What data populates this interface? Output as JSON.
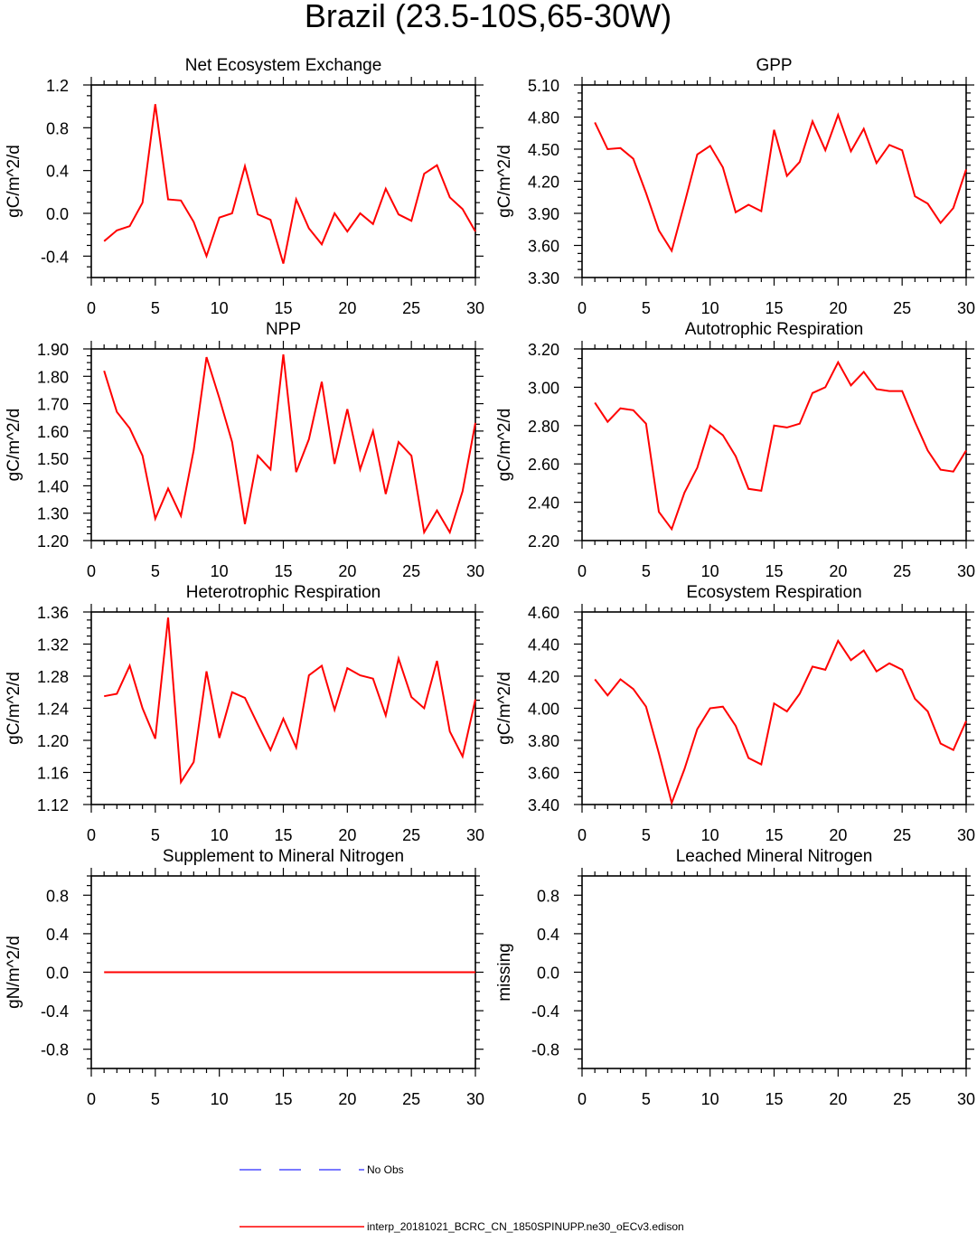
{
  "figure_title": "Brazil (23.5-10S,65-30W)",
  "colors": {
    "model": "#ff0000",
    "obs": "#4d4dff",
    "axis": "#000000"
  },
  "legend": {
    "obs_label": "No Obs",
    "model_label": "interp_20181021_BCRC_CN_1850SPINUPP.ne30_oECv3.edison"
  },
  "chart_data": [
    {
      "id": "nee",
      "type": "line",
      "title": "Net Ecosystem Exchange",
      "ylabel": "gC/m^2/d",
      "xlim": [
        0,
        30
      ],
      "ylim": [
        -0.6,
        1.2
      ],
      "xticks": [
        0,
        5,
        10,
        15,
        20,
        25,
        30
      ],
      "xtick_labels": [
        "0",
        "5",
        "10",
        "15",
        "20",
        "25",
        "30"
      ],
      "yticks": [
        -0.4,
        0.0,
        0.4,
        0.8,
        1.2
      ],
      "ytick_labels": [
        "-0.4",
        "0.0",
        "0.4",
        "0.8",
        "1.2"
      ],
      "x": [
        1,
        2,
        3,
        4,
        5,
        6,
        7,
        8,
        9,
        10,
        11,
        12,
        13,
        14,
        15,
        16,
        17,
        18,
        19,
        20,
        21,
        22,
        23,
        24,
        25,
        26,
        27,
        28,
        29,
        30
      ],
      "series": [
        {
          "name": "interp_20181021_BCRC_CN_1850SPINUPP.ne30_oECv3.edison",
          "values": [
            -0.26,
            -0.16,
            -0.12,
            0.1,
            1.02,
            0.13,
            0.12,
            -0.08,
            -0.4,
            -0.04,
            0.0,
            0.44,
            -0.01,
            -0.06,
            -0.47,
            0.13,
            -0.14,
            -0.29,
            0.0,
            -0.17,
            0.0,
            -0.1,
            0.23,
            -0.01,
            -0.07,
            0.37,
            0.45,
            0.15,
            0.04,
            -0.17
          ]
        }
      ]
    },
    {
      "id": "gpp",
      "type": "line",
      "title": "GPP",
      "ylabel": "gC/m^2/d",
      "xlim": [
        0,
        30
      ],
      "ylim": [
        3.3,
        5.1
      ],
      "xticks": [
        0,
        5,
        10,
        15,
        20,
        25,
        30
      ],
      "xtick_labels": [
        "0",
        "5",
        "10",
        "15",
        "20",
        "25",
        "30"
      ],
      "yticks": [
        3.3,
        3.6,
        3.9,
        4.2,
        4.5,
        4.8,
        5.1
      ],
      "ytick_labels": [
        "3.30",
        "3.60",
        "3.90",
        "4.20",
        "4.50",
        "4.80",
        "5.10"
      ],
      "x": [
        1,
        2,
        3,
        4,
        5,
        6,
        7,
        8,
        9,
        10,
        11,
        12,
        13,
        14,
        15,
        16,
        17,
        18,
        19,
        20,
        21,
        22,
        23,
        24,
        25,
        26,
        27,
        28,
        29,
        30
      ],
      "series": [
        {
          "name": "interp_20181021_BCRC_CN_1850SPINUPP.ne30_oECv3.edison",
          "values": [
            4.75,
            4.5,
            4.51,
            4.41,
            4.09,
            3.74,
            3.55,
            3.99,
            4.45,
            4.53,
            4.33,
            3.91,
            3.98,
            3.92,
            4.68,
            4.25,
            4.38,
            4.76,
            4.49,
            4.82,
            4.48,
            4.69,
            4.37,
            4.54,
            4.49,
            4.06,
            3.99,
            3.81,
            3.95,
            4.31
          ]
        }
      ]
    },
    {
      "id": "npp",
      "type": "line",
      "title": "NPP",
      "ylabel": "gC/m^2/d",
      "xlim": [
        0,
        30
      ],
      "ylim": [
        1.2,
        1.9
      ],
      "xticks": [
        0,
        5,
        10,
        15,
        20,
        25,
        30
      ],
      "xtick_labels": [
        "0",
        "5",
        "10",
        "15",
        "20",
        "25",
        "30"
      ],
      "yticks": [
        1.2,
        1.3,
        1.4,
        1.5,
        1.6,
        1.7,
        1.8,
        1.9
      ],
      "ytick_labels": [
        "1.20",
        "1.30",
        "1.40",
        "1.50",
        "1.60",
        "1.70",
        "1.80",
        "1.90"
      ],
      "x": [
        1,
        2,
        3,
        4,
        5,
        6,
        7,
        8,
        9,
        10,
        11,
        12,
        13,
        14,
        15,
        16,
        17,
        18,
        19,
        20,
        21,
        22,
        23,
        24,
        25,
        26,
        27,
        28,
        29,
        30
      ],
      "series": [
        {
          "name": "interp_20181021_BCRC_CN_1850SPINUPP.ne30_oECv3.edison",
          "values": [
            1.82,
            1.67,
            1.61,
            1.51,
            1.28,
            1.39,
            1.29,
            1.53,
            1.87,
            1.72,
            1.56,
            1.26,
            1.51,
            1.46,
            1.88,
            1.45,
            1.57,
            1.78,
            1.48,
            1.68,
            1.46,
            1.6,
            1.37,
            1.56,
            1.51,
            1.23,
            1.31,
            1.23,
            1.38,
            1.63
          ]
        }
      ]
    },
    {
      "id": "ar",
      "type": "line",
      "title": "Autotrophic Respiration",
      "ylabel": "gC/m^2/d",
      "xlim": [
        0,
        30
      ],
      "ylim": [
        2.2,
        3.2
      ],
      "xticks": [
        0,
        5,
        10,
        15,
        20,
        25,
        30
      ],
      "xtick_labels": [
        "0",
        "5",
        "10",
        "15",
        "20",
        "25",
        "30"
      ],
      "yticks": [
        2.2,
        2.4,
        2.6,
        2.8,
        3.0,
        3.2
      ],
      "ytick_labels": [
        "2.20",
        "2.40",
        "2.60",
        "2.80",
        "3.00",
        "3.20"
      ],
      "x": [
        1,
        2,
        3,
        4,
        5,
        6,
        7,
        8,
        9,
        10,
        11,
        12,
        13,
        14,
        15,
        16,
        17,
        18,
        19,
        20,
        21,
        22,
        23,
        24,
        25,
        26,
        27,
        28,
        29,
        30
      ],
      "series": [
        {
          "name": "interp_20181021_BCRC_CN_1850SPINUPP.ne30_oECv3.edison",
          "values": [
            2.92,
            2.82,
            2.89,
            2.88,
            2.81,
            2.35,
            2.26,
            2.45,
            2.58,
            2.8,
            2.75,
            2.64,
            2.47,
            2.46,
            2.8,
            2.79,
            2.81,
            2.97,
            3.0,
            3.13,
            3.01,
            3.08,
            2.99,
            2.98,
            2.98,
            2.82,
            2.67,
            2.57,
            2.56,
            2.67
          ]
        }
      ]
    },
    {
      "id": "hr",
      "type": "line",
      "title": "Heterotrophic Respiration",
      "ylabel": "gC/m^2/d",
      "xlim": [
        0,
        30
      ],
      "ylim": [
        1.12,
        1.36
      ],
      "xticks": [
        0,
        5,
        10,
        15,
        20,
        25,
        30
      ],
      "xtick_labels": [
        "0",
        "5",
        "10",
        "15",
        "20",
        "25",
        "30"
      ],
      "yticks": [
        1.12,
        1.16,
        1.2,
        1.24,
        1.28,
        1.32,
        1.36
      ],
      "ytick_labels": [
        "1.12",
        "1.16",
        "1.20",
        "1.24",
        "1.28",
        "1.32",
        "1.36"
      ],
      "x": [
        1,
        2,
        3,
        4,
        5,
        6,
        7,
        8,
        9,
        10,
        11,
        12,
        13,
        14,
        15,
        16,
        17,
        18,
        19,
        20,
        21,
        22,
        23,
        24,
        25,
        26,
        27,
        28,
        29,
        30
      ],
      "series": [
        {
          "name": "interp_20181021_BCRC_CN_1850SPINUPP.ne30_oECv3.edison",
          "values": [
            1.255,
            1.258,
            1.293,
            1.24,
            1.202,
            1.353,
            1.148,
            1.173,
            1.286,
            1.203,
            1.26,
            1.253,
            1.22,
            1.188,
            1.227,
            1.191,
            1.281,
            1.293,
            1.238,
            1.29,
            1.281,
            1.277,
            1.231,
            1.302,
            1.254,
            1.24,
            1.299,
            1.211,
            1.18,
            1.251
          ]
        }
      ]
    },
    {
      "id": "er",
      "type": "line",
      "title": "Ecosystem Respiration",
      "ylabel": "gC/m^2/d",
      "xlim": [
        0,
        30
      ],
      "ylim": [
        3.4,
        4.6
      ],
      "xticks": [
        0,
        5,
        10,
        15,
        20,
        25,
        30
      ],
      "xtick_labels": [
        "0",
        "5",
        "10",
        "15",
        "20",
        "25",
        "30"
      ],
      "yticks": [
        3.4,
        3.6,
        3.8,
        4.0,
        4.2,
        4.4,
        4.6
      ],
      "ytick_labels": [
        "3.40",
        "3.60",
        "3.80",
        "4.00",
        "4.20",
        "4.40",
        "4.60"
      ],
      "x": [
        1,
        2,
        3,
        4,
        5,
        6,
        7,
        8,
        9,
        10,
        11,
        12,
        13,
        14,
        15,
        16,
        17,
        18,
        19,
        20,
        21,
        22,
        23,
        24,
        25,
        26,
        27,
        28,
        29,
        30
      ],
      "series": [
        {
          "name": "interp_20181021_BCRC_CN_1850SPINUPP.ne30_oECv3.edison",
          "values": [
            4.18,
            4.08,
            4.18,
            4.12,
            4.01,
            3.72,
            3.41,
            3.62,
            3.87,
            4.0,
            4.01,
            3.89,
            3.69,
            3.65,
            4.03,
            3.98,
            4.09,
            4.26,
            4.24,
            4.42,
            4.3,
            4.36,
            4.23,
            4.28,
            4.24,
            4.06,
            3.98,
            3.78,
            3.74,
            3.92
          ]
        }
      ]
    },
    {
      "id": "smn",
      "type": "line",
      "title": "Supplement to Mineral Nitrogen",
      "ylabel": "gN/m^2/d",
      "xlim": [
        0,
        30
      ],
      "ylim": [
        -1.0,
        1.0
      ],
      "xticks": [
        0,
        5,
        10,
        15,
        20,
        25,
        30
      ],
      "xtick_labels": [
        "0",
        "5",
        "10",
        "15",
        "20",
        "25",
        "30"
      ],
      "yticks": [
        -0.8,
        -0.4,
        0.0,
        0.4,
        0.8
      ],
      "ytick_labels": [
        "-0.8",
        "-0.4",
        "0.0",
        "0.4",
        "0.8"
      ],
      "x": [
        1,
        2,
        3,
        4,
        5,
        6,
        7,
        8,
        9,
        10,
        11,
        12,
        13,
        14,
        15,
        16,
        17,
        18,
        19,
        20,
        21,
        22,
        23,
        24,
        25,
        26,
        27,
        28,
        29,
        30
      ],
      "series": [
        {
          "name": "interp_20181021_BCRC_CN_1850SPINUPP.ne30_oECv3.edison",
          "values": [
            0,
            0,
            0,
            0,
            0,
            0,
            0,
            0,
            0,
            0,
            0,
            0,
            0,
            0,
            0,
            0,
            0,
            0,
            0,
            0,
            0,
            0,
            0,
            0,
            0,
            0,
            0,
            0,
            0,
            0
          ]
        }
      ]
    },
    {
      "id": "lmn",
      "type": "line",
      "title": "Leached Mineral Nitrogen",
      "ylabel": "missing",
      "xlim": [
        0,
        30
      ],
      "ylim": [
        -1.0,
        1.0
      ],
      "xticks": [
        0,
        5,
        10,
        15,
        20,
        25,
        30
      ],
      "xtick_labels": [
        "0",
        "5",
        "10",
        "15",
        "20",
        "25",
        "30"
      ],
      "yticks": [
        -0.8,
        -0.4,
        0.0,
        0.4,
        0.8
      ],
      "ytick_labels": [
        "-0.8",
        "-0.4",
        "0.0",
        "0.4",
        "0.8"
      ],
      "x": [],
      "series": []
    }
  ]
}
